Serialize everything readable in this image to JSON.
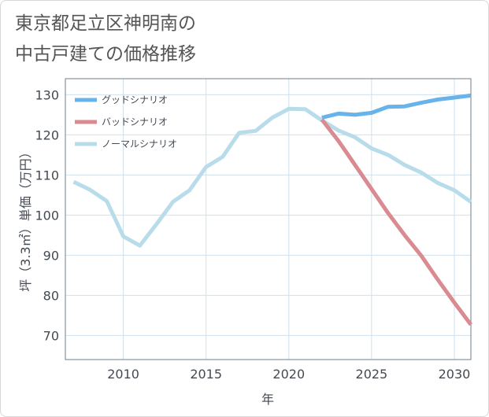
{
  "title": {
    "line1": "東京都足立区神明南の",
    "line2": "中古戸建ての価格推移"
  },
  "chart_data": {
    "type": "line",
    "xlabel": "年",
    "ylabel": "坪（3.3㎡）単価（万円）",
    "xlim": [
      2006.5,
      2031
    ],
    "ylim": [
      64,
      134
    ],
    "x_ticks": [
      2010,
      2015,
      2020,
      2025,
      2030
    ],
    "y_ticks": [
      70,
      80,
      90,
      100,
      110,
      120,
      130
    ],
    "grid": true,
    "legend_position": "top-left",
    "series": [
      {
        "name": "グッドシナリオ",
        "color": "#67b3ea",
        "x": [
          2022,
          2023,
          2024,
          2025,
          2026,
          2027,
          2028,
          2029,
          2030,
          2031
        ],
        "y": [
          124.3,
          125.3,
          125.0,
          125.5,
          127.0,
          127.1,
          128.0,
          128.8,
          129.3,
          129.8
        ]
      },
      {
        "name": "バッドシナリオ",
        "color": "#da8a91",
        "x": [
          2022,
          2023,
          2024,
          2025,
          2026,
          2027,
          2028,
          2029,
          2030,
          2031
        ],
        "y": [
          123.8,
          118.5,
          112.5,
          106.5,
          100.5,
          95.0,
          89.9,
          83.9,
          78.2,
          72.7
        ]
      },
      {
        "name": "ノーマルシナリオ",
        "color": "#b9dcea",
        "x": [
          2007,
          2008,
          2009,
          2010,
          2011,
          2012,
          2013,
          2014,
          2015,
          2016,
          2017,
          2018,
          2019,
          2020,
          2021,
          2022,
          2023,
          2024,
          2025,
          2026,
          2027,
          2028,
          2029,
          2030,
          2031
        ],
        "y": [
          108.3,
          106.3,
          103.5,
          94.7,
          92.4,
          97.7,
          103.3,
          106.2,
          112.0,
          114.5,
          120.5,
          121.0,
          124.3,
          126.5,
          126.4,
          123.6,
          121.1,
          119.4,
          116.6,
          115.0,
          112.5,
          110.6,
          108.0,
          106.2,
          103.3
        ]
      }
    ]
  }
}
